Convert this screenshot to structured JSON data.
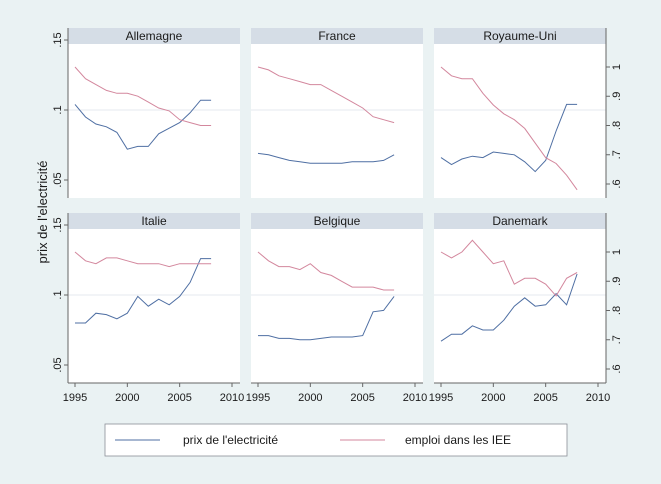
{
  "chart_data": {
    "type": "line",
    "y_axis_label": "prix de l'electricité",
    "left_axis_ticks": [
      ".05",
      ".1",
      ".15"
    ],
    "left_ylim": [
      0.05,
      0.15
    ],
    "right_axis_ticks": [
      ".6",
      ".7",
      ".8",
      ".9",
      "1"
    ],
    "right_ylim": [
      0.57,
      1.06
    ],
    "x_ticks": [
      "1995",
      "2000",
      "2005",
      "2010"
    ],
    "xlim": [
      1995,
      2010
    ],
    "years": [
      1995,
      1996,
      1997,
      1998,
      1999,
      2000,
      2001,
      2002,
      2003,
      2004,
      2005,
      2006,
      2007,
      2008
    ],
    "colors": {
      "prix": "#4f6fa3",
      "emploi": "#d3879d",
      "panel_bg": "#ffffff",
      "title_bg": "#d5dde6",
      "grid": "#e6eaef",
      "background": "#eaf2f3"
    },
    "legend": [
      "prix de l'electricité",
      "emploi dans les IEE"
    ],
    "legend_position": "bottom",
    "panels": [
      {
        "title": "Allemagne",
        "prix": [
          0.104,
          0.095,
          0.09,
          0.088,
          0.084,
          0.072,
          0.074,
          0.074,
          0.083,
          0.087,
          0.091,
          0.098,
          0.107,
          0.107
        ],
        "emploi": [
          1.0,
          0.96,
          0.94,
          0.92,
          0.91,
          0.91,
          0.9,
          0.88,
          0.86,
          0.85,
          0.82,
          0.81,
          0.8,
          0.8
        ]
      },
      {
        "title": "France",
        "prix": [
          0.069,
          0.068,
          0.066,
          0.064,
          0.063,
          0.062,
          0.062,
          0.062,
          0.062,
          0.063,
          0.063,
          0.063,
          0.064,
          0.068
        ],
        "emploi": [
          1.0,
          0.99,
          0.97,
          0.96,
          0.95,
          0.94,
          0.94,
          0.92,
          0.9,
          0.88,
          0.86,
          0.83,
          0.82,
          0.81
        ]
      },
      {
        "title": "Royaume-Uni",
        "prix": [
          0.066,
          0.061,
          0.065,
          0.067,
          0.066,
          0.07,
          0.069,
          0.068,
          0.063,
          0.056,
          0.064,
          0.085,
          0.104,
          0.104
        ],
        "emploi": [
          1.0,
          0.97,
          0.96,
          0.96,
          0.91,
          0.87,
          0.84,
          0.82,
          0.79,
          0.74,
          0.69,
          0.67,
          0.63,
          0.58
        ]
      },
      {
        "title": "Italie",
        "prix": [
          0.08,
          0.08,
          0.087,
          0.086,
          0.083,
          0.087,
          0.099,
          0.092,
          0.097,
          0.093,
          0.099,
          0.109,
          0.126,
          0.126
        ],
        "emploi": [
          1.0,
          0.97,
          0.96,
          0.98,
          0.98,
          0.97,
          0.96,
          0.96,
          0.96,
          0.95,
          0.96,
          0.96,
          0.96,
          0.96
        ]
      },
      {
        "title": "Belgique",
        "prix": [
          0.071,
          0.071,
          0.069,
          0.069,
          0.068,
          0.068,
          0.069,
          0.07,
          0.07,
          0.07,
          0.071,
          0.088,
          0.089,
          0.099
        ],
        "emploi": [
          1.0,
          0.97,
          0.95,
          0.95,
          0.94,
          0.96,
          0.93,
          0.92,
          0.9,
          0.88,
          0.88,
          0.88,
          0.87,
          0.87
        ]
      },
      {
        "title": "Danemark",
        "prix": [
          0.067,
          0.072,
          0.072,
          0.078,
          0.075,
          0.075,
          0.082,
          0.092,
          0.098,
          0.092,
          0.093,
          0.101,
          0.093,
          0.115
        ],
        "emploi": [
          1.0,
          0.98,
          1.0,
          1.04,
          1.0,
          0.96,
          0.97,
          0.89,
          0.91,
          0.91,
          0.89,
          0.85,
          0.91,
          0.93
        ]
      }
    ]
  }
}
